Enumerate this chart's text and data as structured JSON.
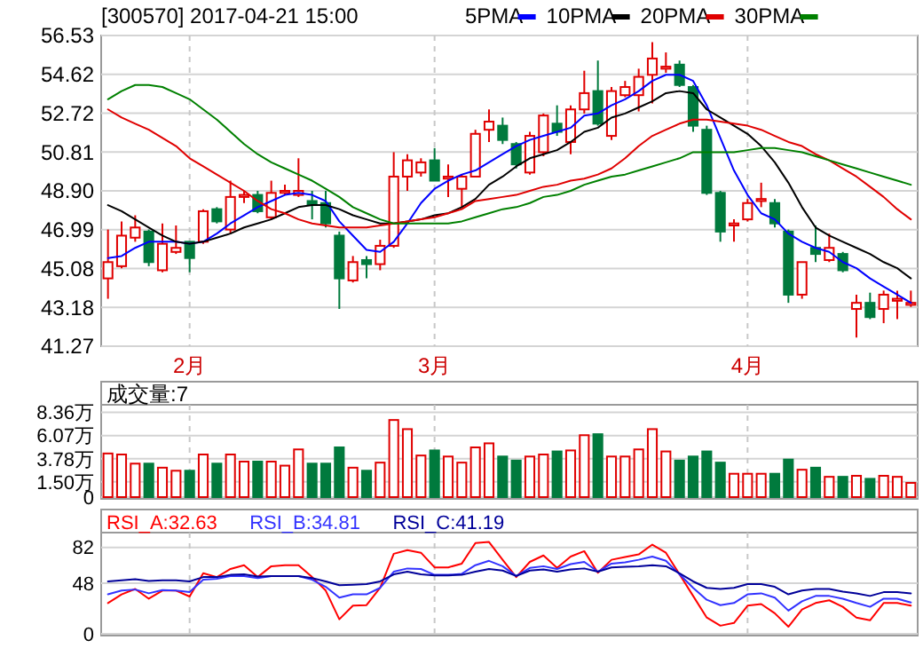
{
  "chart_data": [
    {
      "type": "candlestick",
      "title": "[300570] 2017-04-21 15:00",
      "legend": "top",
      "grid": true,
      "categories": [
        null,
        null,
        null,
        null,
        null,
        null,
        "2月",
        null,
        null,
        null,
        null,
        null,
        null,
        null,
        null,
        null,
        null,
        null,
        null,
        null,
        null,
        null,
        null,
        null,
        "3月",
        null,
        null,
        null,
        null,
        null,
        null,
        null,
        null,
        null,
        null,
        null,
        null,
        null,
        null,
        null,
        null,
        null,
        null,
        null,
        null,
        null,
        null,
        "4月",
        null,
        null,
        null,
        null,
        null,
        null,
        null,
        null,
        null,
        null,
        null,
        null
      ],
      "ylim": [
        41.27,
        56.53
      ],
      "yticks": [
        {
          "value": 41.27,
          "label": "41.27"
        },
        {
          "value": 43.18,
          "label": "43.18"
        },
        {
          "value": 45.08,
          "label": "45.08"
        },
        {
          "value": 46.99,
          "label": "46.99"
        },
        {
          "value": 48.9,
          "label": "48.90"
        },
        {
          "value": 50.81,
          "label": "50.81"
        },
        {
          "value": 52.72,
          "label": "52.72"
        },
        {
          "value": 54.62,
          "label": "54.62"
        },
        {
          "value": 56.53,
          "label": "56.53"
        }
      ],
      "ohlc": [
        [
          44.6,
          47.0,
          43.6,
          45.4
        ],
        [
          45.2,
          47.4,
          45.1,
          46.7
        ],
        [
          46.6,
          47.7,
          46.4,
          47.1
        ],
        [
          46.9,
          47.0,
          45.2,
          45.4
        ],
        [
          45.0,
          47.3,
          44.9,
          46.3
        ],
        [
          45.9,
          47.2,
          45.8,
          46.1
        ],
        [
          46.4,
          46.4,
          44.9,
          45.6
        ],
        [
          46.4,
          48.0,
          46.3,
          47.9
        ],
        [
          48.0,
          48.1,
          47.3,
          47.4
        ],
        [
          47.0,
          49.4,
          46.8,
          48.6
        ],
        [
          48.6,
          48.9,
          48.3,
          48.7
        ],
        [
          48.7,
          48.9,
          47.8,
          47.9
        ],
        [
          47.6,
          49.4,
          47.5,
          48.8
        ],
        [
          48.8,
          49.2,
          48.7,
          48.9
        ],
        [
          48.7,
          50.5,
          48.6,
          48.9
        ],
        [
          48.4,
          48.9,
          47.5,
          48.2
        ],
        [
          48.3,
          48.9,
          47.1,
          47.3
        ],
        [
          46.7,
          46.9,
          43.1,
          44.6
        ],
        [
          44.5,
          45.7,
          44.4,
          45.4
        ],
        [
          45.5,
          45.7,
          44.6,
          45.3
        ],
        [
          45.3,
          46.5,
          45.0,
          46.2
        ],
        [
          46.2,
          50.8,
          46.1,
          49.6
        ],
        [
          49.6,
          50.7,
          48.9,
          50.4
        ],
        [
          49.8,
          50.5,
          49.6,
          50.3
        ],
        [
          50.4,
          51.0,
          49.4,
          49.4
        ],
        [
          49.5,
          50.2,
          48.6,
          49.6
        ],
        [
          49.0,
          49.7,
          48.1,
          49.6
        ],
        [
          49.6,
          51.9,
          49.6,
          51.7
        ],
        [
          51.9,
          52.9,
          51.3,
          52.3
        ],
        [
          52.1,
          52.5,
          51.2,
          51.4
        ],
        [
          51.2,
          51.3,
          50.0,
          50.2
        ],
        [
          49.8,
          51.8,
          49.7,
          51.6
        ],
        [
          50.8,
          52.7,
          50.6,
          52.6
        ],
        [
          52.2,
          53.1,
          51.6,
          51.8
        ],
        [
          51.3,
          53.1,
          50.7,
          52.9
        ],
        [
          52.9,
          54.8,
          52.7,
          53.7
        ],
        [
          53.8,
          55.3,
          52.1,
          52.2
        ],
        [
          51.6,
          54.0,
          51.4,
          53.8
        ],
        [
          53.6,
          54.3,
          53.5,
          54.0
        ],
        [
          53.6,
          54.9,
          52.8,
          54.5
        ],
        [
          54.6,
          56.2,
          53.2,
          55.4
        ],
        [
          54.9,
          55.7,
          54.7,
          55.0
        ],
        [
          55.1,
          55.3,
          54.0,
          54.1
        ],
        [
          54.0,
          54.1,
          51.8,
          52.1
        ],
        [
          51.9,
          52.1,
          48.7,
          48.8
        ],
        [
          48.8,
          48.9,
          46.4,
          46.9
        ],
        [
          47.2,
          47.5,
          46.4,
          47.3
        ],
        [
          47.5,
          48.5,
          47.4,
          48.3
        ],
        [
          48.4,
          49.3,
          48.1,
          48.5
        ],
        [
          48.3,
          48.5,
          47.1,
          47.3
        ],
        [
          46.9,
          47.0,
          43.4,
          43.8
        ],
        [
          43.8,
          45.4,
          43.6,
          45.4
        ],
        [
          46.1,
          47.2,
          45.4,
          45.8
        ],
        [
          45.5,
          46.8,
          45.4,
          46.1
        ],
        [
          45.8,
          45.9,
          44.9,
          45.0
        ],
        [
          43.1,
          43.8,
          41.7,
          43.4
        ],
        [
          43.4,
          43.9,
          42.6,
          42.7
        ],
        [
          43.1,
          44.0,
          42.4,
          43.8
        ],
        [
          43.5,
          44.0,
          42.6,
          43.6
        ],
        [
          43.3,
          44.0,
          43.2,
          43.4
        ]
      ],
      "colors": [
        "#e00000",
        "#e00000",
        "#e00000",
        "#007a3d",
        "#e00000",
        "#e00000",
        "#007a3d",
        "#e00000",
        "#007a3d",
        "#e00000",
        "#e00000",
        "#007a3d",
        "#e00000",
        "#e00000",
        "#e00000",
        "#007a3d",
        "#007a3d",
        "#007a3d",
        "#e00000",
        "#007a3d",
        "#e00000",
        "#e00000",
        "#e00000",
        "#e00000",
        "#007a3d",
        "#e00000",
        "#e00000",
        "#e00000",
        "#e00000",
        "#007a3d",
        "#007a3d",
        "#e00000",
        "#e00000",
        "#007a3d",
        "#e00000",
        "#e00000",
        "#007a3d",
        "#e00000",
        "#e00000",
        "#e00000",
        "#e00000",
        "#e00000",
        "#007a3d",
        "#007a3d",
        "#007a3d",
        "#007a3d",
        "#e00000",
        "#e00000",
        "#e00000",
        "#007a3d",
        "#007a3d",
        "#e00000",
        "#007a3d",
        "#e00000",
        "#007a3d",
        "#e00000",
        "#007a3d",
        "#e00000",
        "#e00000",
        "#e00000"
      ],
      "series": [
        {
          "name": "5PMA",
          "type": "line",
          "color": "#0000ff",
          "values": [
            45.6,
            45.7,
            46.1,
            46.4,
            46.4,
            46.4,
            46.3,
            46.4,
            46.8,
            47.3,
            47.7,
            48.1,
            48.4,
            48.7,
            48.8,
            48.7,
            48.4,
            47.4,
            46.7,
            46.0,
            45.9,
            46.4,
            47.3,
            48.3,
            49.0,
            49.4,
            49.7,
            49.9,
            50.3,
            50.7,
            51.1,
            51.4,
            51.6,
            51.8,
            52.0,
            52.6,
            52.7,
            53.1,
            53.4,
            53.8,
            54.3,
            54.6,
            54.6,
            54.3,
            53.1,
            51.5,
            49.9,
            48.7,
            47.8,
            47.5,
            46.8,
            46.4,
            46.1,
            45.9,
            45.4,
            45.1,
            44.6,
            44.2,
            43.8,
            43.4
          ]
        },
        {
          "name": "10PMA",
          "type": "line",
          "color": "#000000",
          "values": [
            48.2,
            47.9,
            47.5,
            47.1,
            46.7,
            46.4,
            46.3,
            46.4,
            46.6,
            46.8,
            47.1,
            47.3,
            47.5,
            47.8,
            48.1,
            48.2,
            48.2,
            48.0,
            47.7,
            47.5,
            47.3,
            47.3,
            47.4,
            47.5,
            47.7,
            47.8,
            48.1,
            48.5,
            49.2,
            49.6,
            50.1,
            50.5,
            50.7,
            50.9,
            51.3,
            51.8,
            52.0,
            52.5,
            52.7,
            53.0,
            53.3,
            53.7,
            53.8,
            53.7,
            52.9,
            52.5,
            52.1,
            51.7,
            51.1,
            50.3,
            49.3,
            48.1,
            47.1,
            46.7,
            46.4,
            46.1,
            45.8,
            45.4,
            45.1,
            44.6
          ]
        },
        {
          "name": "20PMA",
          "type": "line",
          "color": "#e00000",
          "values": [
            52.9,
            52.5,
            52.2,
            51.9,
            51.5,
            51.1,
            50.5,
            50.1,
            49.7,
            49.3,
            48.9,
            48.4,
            48.0,
            47.8,
            47.5,
            47.3,
            47.2,
            47.1,
            47.1,
            47.1,
            47.2,
            47.3,
            47.4,
            47.5,
            47.6,
            47.8,
            48.0,
            48.4,
            48.5,
            48.6,
            48.7,
            48.9,
            49.1,
            49.2,
            49.4,
            49.5,
            49.7,
            50.0,
            50.5,
            51.1,
            51.6,
            51.9,
            52.2,
            52.4,
            52.4,
            52.3,
            52.2,
            52.1,
            51.9,
            51.6,
            51.3,
            51.1,
            50.7,
            50.4,
            50.0,
            49.6,
            49.1,
            48.6,
            48.0,
            47.5
          ]
        },
        {
          "name": "30PMA",
          "type": "line",
          "color": "#008000",
          "values": [
            53.4,
            53.8,
            54.1,
            54.1,
            54.0,
            53.7,
            53.4,
            52.9,
            52.4,
            51.8,
            51.2,
            50.7,
            50.3,
            50.0,
            49.7,
            49.4,
            49.0,
            48.6,
            48.1,
            47.8,
            47.5,
            47.3,
            47.3,
            47.3,
            47.3,
            47.3,
            47.4,
            47.6,
            47.8,
            48.0,
            48.1,
            48.3,
            48.6,
            48.7,
            48.9,
            49.2,
            49.4,
            49.6,
            49.7,
            49.9,
            50.1,
            50.3,
            50.5,
            50.8,
            50.8,
            50.8,
            50.8,
            50.9,
            51.0,
            51.0,
            50.9,
            50.8,
            50.6,
            50.4,
            50.2,
            50.0,
            49.8,
            49.6,
            49.4,
            49.2
          ]
        }
      ]
    },
    {
      "type": "bar",
      "title": "成交量:7",
      "grid": true,
      "tick_labels": "y",
      "categories": [
        null,
        null,
        null,
        null,
        null,
        null,
        null,
        null,
        null,
        null,
        null,
        null,
        null,
        null,
        null,
        null,
        null,
        null,
        null,
        null,
        null,
        null,
        null,
        null,
        null,
        null,
        null,
        null,
        null,
        null,
        null,
        null,
        null,
        null,
        null,
        null,
        null,
        null,
        null,
        null,
        null,
        null,
        null,
        null,
        null,
        null,
        null,
        null,
        null,
        null,
        null,
        null,
        null,
        null,
        null,
        null,
        null,
        null,
        null,
        null
      ],
      "ylim": [
        0,
        9.1
      ],
      "yticks": [
        {
          "value": 0,
          "label": "0"
        },
        {
          "value": 1.5,
          "label": "1.50万"
        },
        {
          "value": 3.78,
          "label": "3.78万"
        },
        {
          "value": 6.07,
          "label": "6.07万"
        },
        {
          "value": 8.36,
          "label": "8.36万"
        }
      ],
      "values": [
        4.3,
        4.2,
        3.3,
        3.3,
        2.9,
        2.6,
        2.6,
        4.2,
        3.3,
        4.2,
        3.5,
        3.5,
        3.5,
        3.1,
        4.7,
        3.3,
        3.3,
        4.9,
        2.9,
        2.6,
        3.4,
        7.6,
        6.7,
        4.1,
        4.6,
        4.0,
        3.4,
        4.9,
        5.3,
        4.0,
        3.6,
        4.0,
        4.2,
        4.5,
        4.6,
        6.1,
        6.2,
        4.0,
        4.0,
        4.7,
        6.7,
        4.5,
        3.6,
        4.0,
        4.5,
        3.4,
        2.3,
        2.3,
        2.3,
        2.3,
        3.7,
        2.7,
        2.9,
        2.0,
        2.0,
        2.1,
        1.8,
        2.1,
        2.0,
        1.4
      ],
      "colors": [
        "#e00000",
        "#e00000",
        "#e00000",
        "#007a3d",
        "#e00000",
        "#e00000",
        "#007a3d",
        "#e00000",
        "#007a3d",
        "#e00000",
        "#e00000",
        "#007a3d",
        "#e00000",
        "#e00000",
        "#e00000",
        "#007a3d",
        "#007a3d",
        "#007a3d",
        "#e00000",
        "#007a3d",
        "#e00000",
        "#e00000",
        "#e00000",
        "#e00000",
        "#007a3d",
        "#e00000",
        "#e00000",
        "#e00000",
        "#e00000",
        "#007a3d",
        "#007a3d",
        "#e00000",
        "#e00000",
        "#007a3d",
        "#e00000",
        "#e00000",
        "#007a3d",
        "#e00000",
        "#e00000",
        "#e00000",
        "#e00000",
        "#e00000",
        "#007a3d",
        "#007a3d",
        "#007a3d",
        "#007a3d",
        "#e00000",
        "#e00000",
        "#e00000",
        "#007a3d",
        "#007a3d",
        "#e00000",
        "#007a3d",
        "#e00000",
        "#007a3d",
        "#e00000",
        "#007a3d",
        "#e00000",
        "#e00000",
        "#e00000"
      ]
    },
    {
      "type": "line",
      "grid": true,
      "tick_labels": "y",
      "legend": "top left",
      "categories": [
        null,
        null,
        null,
        null,
        null,
        null,
        null,
        null,
        null,
        null,
        null,
        null,
        null,
        null,
        null,
        null,
        null,
        null,
        null,
        null,
        null,
        null,
        null,
        null,
        null,
        null,
        null,
        null,
        null,
        null,
        null,
        null,
        null,
        null,
        null,
        null,
        null,
        null,
        null,
        null,
        null,
        null,
        null,
        null,
        null,
        null,
        null,
        null,
        null,
        null,
        null,
        null,
        null,
        null,
        null,
        null,
        null,
        null,
        null,
        null
      ],
      "ylim": [
        0,
        96
      ],
      "yticks": [
        0,
        48,
        82
      ],
      "series": [
        {
          "name": "RSI_A:32.63",
          "color": "#ff0000",
          "values": [
            29.2,
            37.4,
            42.5,
            33.3,
            41.0,
            41.0,
            35.4,
            57.4,
            53.8,
            61.5,
            65.1,
            53.8,
            64.1,
            65.1,
            65.1,
            53.8,
            41.0,
            13.8,
            26.7,
            27.2,
            43.6,
            75.9,
            79.4,
            76.9,
            63.0,
            63.0,
            66.6,
            86.1,
            87.1,
            70.2,
            53.8,
            68.2,
            74.3,
            62.5,
            73.3,
            78.4,
            57.9,
            70.2,
            72.8,
            75.3,
            84.6,
            76.9,
            56.4,
            35.9,
            15.4,
            7.7,
            10.3,
            26.7,
            28.2,
            19.5,
            6.7,
            23.1,
            29.2,
            31.8,
            25.6,
            15.4,
            12.8,
            29.2,
            29.2,
            26.7
          ]
        },
        {
          "name": "RSI_B:34.81",
          "color": "#3333ff",
          "values": [
            37.4,
            41.0,
            42.0,
            38.4,
            41.5,
            41.0,
            39.5,
            51.3,
            52.3,
            54.8,
            54.8,
            52.8,
            54.8,
            54.8,
            54.8,
            51.3,
            44.6,
            34.3,
            37.4,
            37.4,
            43.6,
            58.9,
            62.0,
            61.5,
            55.9,
            55.9,
            56.9,
            65.1,
            69.2,
            64.1,
            54.8,
            62.5,
            64.1,
            61.5,
            66.1,
            68.2,
            58.9,
            66.6,
            67.7,
            70.2,
            73.3,
            69.2,
            56.4,
            43.6,
            32.3,
            27.2,
            29.2,
            37.4,
            38.4,
            34.3,
            22.0,
            30.8,
            35.9,
            35.9,
            33.3,
            29.2,
            25.6,
            33.3,
            33.3,
            29.7
          ]
        },
        {
          "name": "RSI_C:41.19",
          "color": "#000099",
          "values": [
            49.7,
            50.7,
            51.8,
            50.2,
            50.7,
            50.7,
            49.7,
            53.8,
            53.8,
            55.9,
            56.4,
            54.3,
            54.8,
            54.8,
            54.8,
            52.8,
            49.7,
            46.1,
            46.6,
            47.2,
            49.7,
            56.4,
            58.9,
            56.4,
            55.4,
            55.4,
            55.9,
            58.9,
            61.5,
            60.0,
            54.8,
            60.0,
            61.0,
            58.9,
            61.0,
            62.0,
            58.9,
            63.0,
            63.6,
            64.1,
            65.1,
            64.1,
            57.4,
            49.7,
            43.6,
            42.5,
            43.6,
            47.2,
            47.2,
            44.6,
            37.4,
            41.0,
            42.5,
            42.5,
            40.0,
            38.4,
            35.9,
            39.5,
            39.5,
            38.4
          ]
        }
      ]
    }
  ]
}
